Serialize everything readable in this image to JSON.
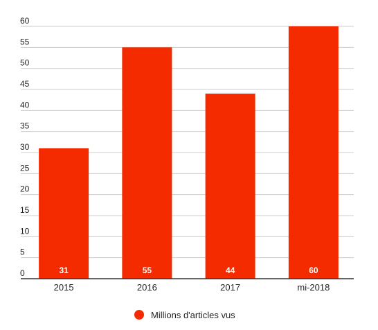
{
  "chart_data": {
    "type": "bar",
    "categories": [
      "2015",
      "2016",
      "2017",
      "mi-2018"
    ],
    "values": [
      31,
      55,
      44,
      60
    ],
    "data_labels": [
      "31",
      "55",
      "44",
      "60"
    ],
    "series": [
      {
        "name": "Millions d'articles vus",
        "values": [
          31,
          55,
          44,
          60
        ]
      }
    ],
    "title": "",
    "xlabel": "",
    "ylabel": "",
    "ylim": [
      0,
      60
    ],
    "yticks": [
      "0",
      "5",
      "10",
      "15",
      "20",
      "25",
      "30",
      "35",
      "40",
      "45",
      "50",
      "55",
      "60"
    ],
    "grid": true,
    "legend_position": "bottom-center",
    "bar_color": "#f52b00"
  }
}
